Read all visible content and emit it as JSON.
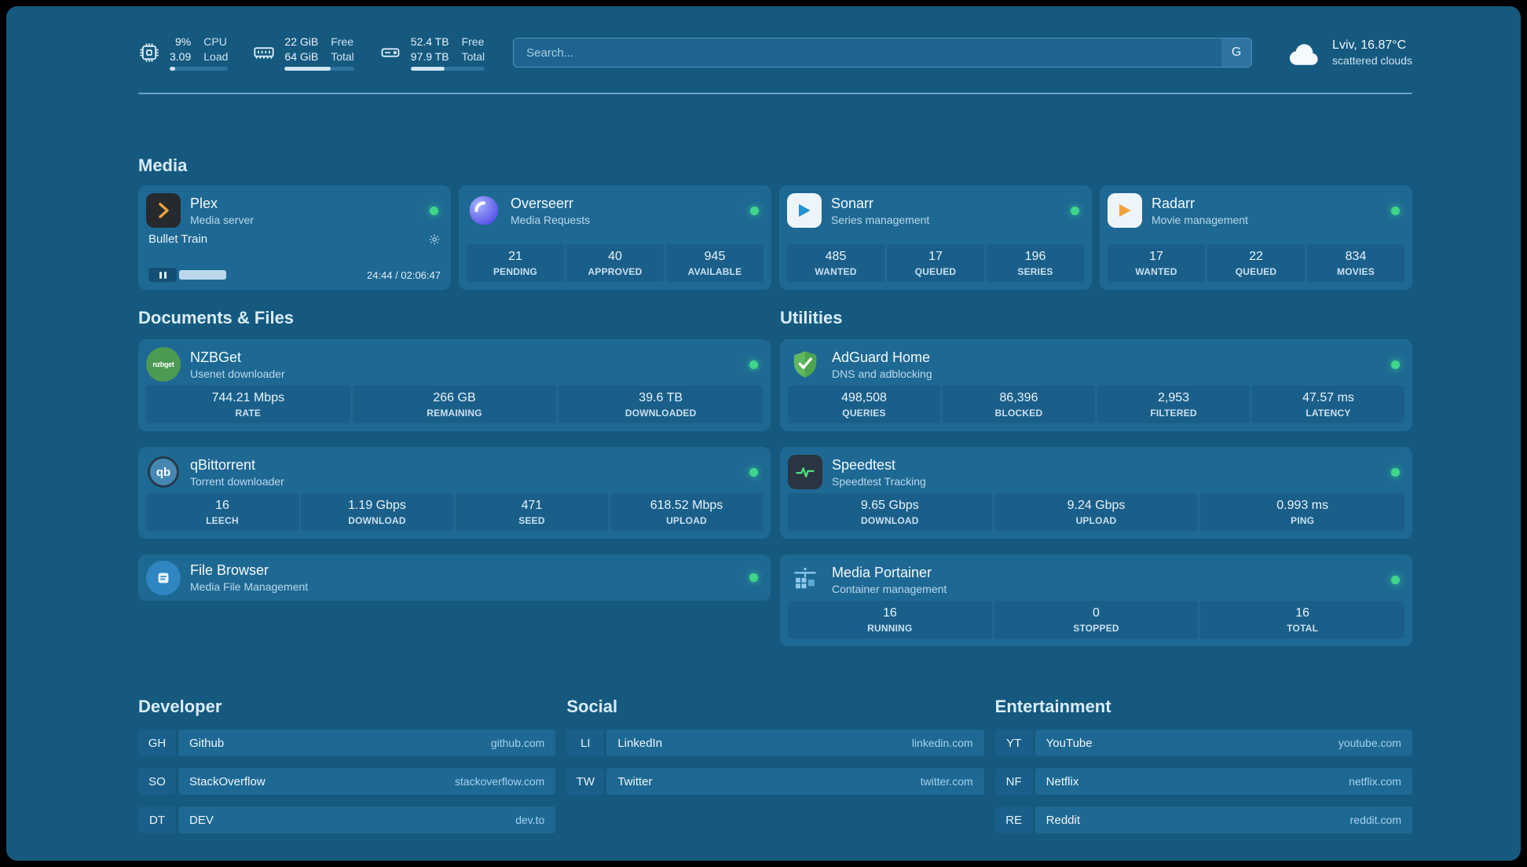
{
  "colors": {
    "background": "#15597f",
    "card": "#1e6993",
    "status_online": "#3fd68a",
    "section_title": "#d9edf9",
    "link": "#a5d2ef"
  },
  "topbar": {
    "resources": [
      {
        "name": "cpu",
        "values": [
          "9%",
          "3.09"
        ],
        "labels": [
          "CPU",
          "Load"
        ],
        "progress": 9
      },
      {
        "name": "memory",
        "values": [
          "22 GiB",
          "64 GiB"
        ],
        "labels": [
          "Free",
          "Total"
        ],
        "progress": 66
      },
      {
        "name": "disk",
        "values": [
          "52.4 TB",
          "97.9 TB"
        ],
        "labels": [
          "Free",
          "Total"
        ],
        "progress": 46
      }
    ],
    "search": {
      "placeholder": "Search...",
      "button_label": "G"
    },
    "weather": {
      "location": "Lviv, 16.87°C",
      "condition": "scattered clouds"
    }
  },
  "sections": {
    "media": {
      "title": "Media",
      "cards": [
        {
          "name": "Plex",
          "subtitle": "Media server",
          "status": "online",
          "now_playing": {
            "title": "Bullet Train",
            "time": "24:44 / 02:06:47"
          }
        },
        {
          "name": "Overseerr",
          "subtitle": "Media Requests",
          "status": "online",
          "stats": [
            {
              "value": "21",
              "label": "PENDING"
            },
            {
              "value": "40",
              "label": "APPROVED"
            },
            {
              "value": "945",
              "label": "AVAILABLE"
            }
          ]
        },
        {
          "name": "Sonarr",
          "subtitle": "Series management",
          "status": "online",
          "stats": [
            {
              "value": "485",
              "label": "WANTED"
            },
            {
              "value": "17",
              "label": "QUEUED"
            },
            {
              "value": "196",
              "label": "SERIES"
            }
          ]
        },
        {
          "name": "Radarr",
          "subtitle": "Movie management",
          "status": "online",
          "stats": [
            {
              "value": "17",
              "label": "WANTED"
            },
            {
              "value": "22",
              "label": "QUEUED"
            },
            {
              "value": "834",
              "label": "MOVIES"
            }
          ]
        }
      ]
    },
    "documents": {
      "title": "Documents & Files",
      "cards": [
        {
          "name": "NZBGet",
          "subtitle": "Usenet downloader",
          "status": "online",
          "stats": [
            {
              "value": "744.21 Mbps",
              "label": "RATE"
            },
            {
              "value": "266 GB",
              "label": "REMAINING"
            },
            {
              "value": "39.6 TB",
              "label": "DOWNLOADED"
            }
          ]
        },
        {
          "name": "qBittorrent",
          "subtitle": "Torrent downloader",
          "status": "online",
          "stats": [
            {
              "value": "16",
              "label": "LEECH"
            },
            {
              "value": "1.19 Gbps",
              "label": "DOWNLOAD"
            },
            {
              "value": "471",
              "label": "SEED"
            },
            {
              "value": "618.52 Mbps",
              "label": "UPLOAD"
            }
          ]
        },
        {
          "name": "File Browser",
          "subtitle": "Media File Management",
          "status": "online"
        }
      ]
    },
    "utilities": {
      "title": "Utilities",
      "cards": [
        {
          "name": "AdGuard Home",
          "subtitle": "DNS and adblocking",
          "status": "online",
          "stats": [
            {
              "value": "498,508",
              "label": "QUERIES"
            },
            {
              "value": "86,396",
              "label": "BLOCKED"
            },
            {
              "value": "2,953",
              "label": "FILTERED"
            },
            {
              "value": "47.57 ms",
              "label": "LATENCY"
            }
          ]
        },
        {
          "name": "Speedtest",
          "subtitle": "Speedtest Tracking",
          "status": "online",
          "stats": [
            {
              "value": "9.65 Gbps",
              "label": "DOWNLOAD"
            },
            {
              "value": "9.24 Gbps",
              "label": "UPLOAD"
            },
            {
              "value": "0.993 ms",
              "label": "PING"
            }
          ]
        },
        {
          "name": "Media Portainer",
          "subtitle": "Container management",
          "status": "online",
          "stats": [
            {
              "value": "16",
              "label": "RUNNING"
            },
            {
              "value": "0",
              "label": "STOPPED"
            },
            {
              "value": "16",
              "label": "TOTAL"
            }
          ]
        }
      ]
    },
    "bookmarks": [
      {
        "title": "Developer",
        "items": [
          {
            "abbr": "GH",
            "name": "Github",
            "url": "github.com"
          },
          {
            "abbr": "SO",
            "name": "StackOverflow",
            "url": "stackoverflow.com"
          },
          {
            "abbr": "DT",
            "name": "DEV",
            "url": "dev.to"
          }
        ]
      },
      {
        "title": "Social",
        "items": [
          {
            "abbr": "LI",
            "name": "LinkedIn",
            "url": "linkedin.com"
          },
          {
            "abbr": "TW",
            "name": "Twitter",
            "url": "twitter.com"
          }
        ]
      },
      {
        "title": "Entertainment",
        "items": [
          {
            "abbr": "YT",
            "name": "YouTube",
            "url": "youtube.com"
          },
          {
            "abbr": "NF",
            "name": "Netflix",
            "url": "netflix.com"
          },
          {
            "abbr": "RE",
            "name": "Reddit",
            "url": "reddit.com"
          }
        ]
      }
    ]
  }
}
